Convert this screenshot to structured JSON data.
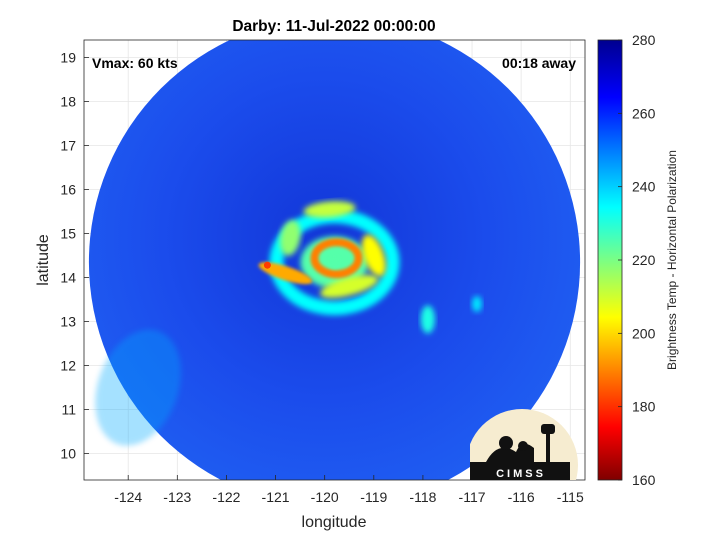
{
  "chart_data": {
    "type": "heatmap",
    "title": "Darby: 11-Jul-2022 00:00:00",
    "xlabel": "longitude",
    "ylabel": "latitude",
    "xlim": [
      -124.9,
      -114.7
    ],
    "ylim": [
      9.4,
      19.4
    ],
    "x_ticks": [
      -124,
      -123,
      -122,
      -121,
      -120,
      -119,
      -118,
      -117,
      -116,
      -115
    ],
    "y_ticks": [
      10,
      11,
      12,
      13,
      14,
      15,
      16,
      17,
      18,
      19
    ],
    "grid": true,
    "annotations": {
      "left": "Vmax: 60 kts",
      "right": "00:18 away"
    },
    "colorbar": {
      "label": "Brightness Temp - Horizontal Polarization",
      "range": [
        160,
        280
      ],
      "ticks": [
        160,
        180,
        200,
        220,
        240,
        260,
        280
      ],
      "colormap": [
        "#7f0000",
        "#ff0000",
        "#ffff00",
        "#00ffff",
        "#0000ff",
        "#00008f"
      ]
    },
    "swath": {
      "center": [
        -119.8,
        14.35
      ],
      "radius_deg": 5.0
    },
    "features": [
      {
        "name": "eye",
        "lon": -119.8,
        "lat": 14.35,
        "value": 225
      },
      {
        "name": "inner-eyewall",
        "lon": -119.7,
        "lat": 14.5,
        "value": 190
      },
      {
        "name": "southwest-rainband",
        "lon": -120.8,
        "lat": 14.1,
        "value": 195
      },
      {
        "name": "north-arc",
        "lon": -119.9,
        "lat": 15.55,
        "value": 212
      },
      {
        "name": "west-arc",
        "lon": -120.7,
        "lat": 14.9,
        "value": 218
      },
      {
        "name": "east-arc",
        "lon": -119.0,
        "lat": 14.5,
        "value": 205
      },
      {
        "name": "south-spiral",
        "lon": -119.5,
        "lat": 13.8,
        "value": 210
      },
      {
        "name": "east-blob",
        "lon": -117.9,
        "lat": 13.05,
        "value": 232
      },
      {
        "name": "far-east-blob",
        "lon": -116.9,
        "lat": 13.4,
        "value": 238
      },
      {
        "name": "cold-region-sw",
        "lon": -123.8,
        "lat": 11.5,
        "value": 245
      }
    ]
  },
  "logo": {
    "text": "CIMSS"
  }
}
